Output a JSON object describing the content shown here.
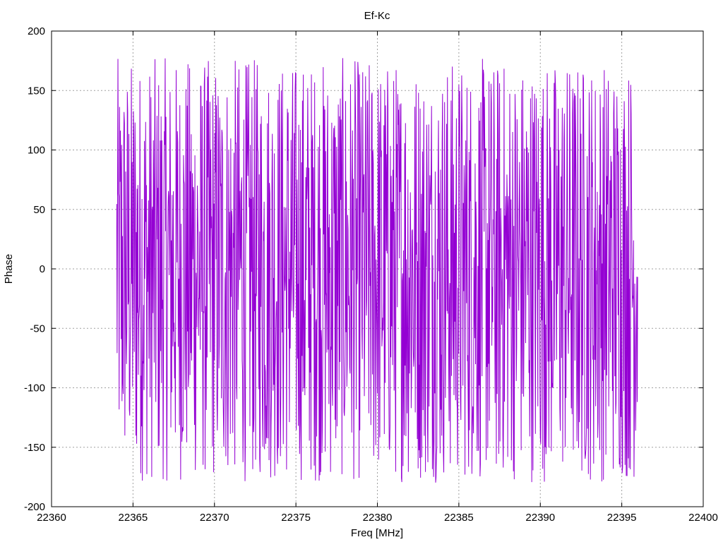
{
  "chart_data": {
    "type": "line",
    "title": "Ef-Kc",
    "xlabel": "Freq [MHz]",
    "ylabel": "Phase",
    "xlim": [
      22360,
      22400
    ],
    "ylim": [
      -200,
      200
    ],
    "xticks": [
      22360,
      22365,
      22370,
      22375,
      22380,
      22385,
      22390,
      22395,
      22400
    ],
    "yticks": [
      -200,
      -150,
      -100,
      -50,
      0,
      50,
      100,
      150,
      200
    ],
    "xtick_labels": [
      "22360",
      "22365",
      "22370",
      "22375",
      "22380",
      "22385",
      "22390",
      "22395",
      "22400"
    ],
    "ytick_labels": [
      "-200",
      "-150",
      "-100",
      "-50",
      "0",
      "50",
      "100",
      "150",
      "200"
    ],
    "grid": true,
    "grid_style": "dotted",
    "line_color": "#9400d3",
    "series": [
      {
        "x_start": 22364.0,
        "x_end": 22396.0,
        "x_step": 0.025,
        "y_range": [
          -180,
          178
        ],
        "note_values": "phase wraps between about -180 and +178 across the whole frequency span"
      }
    ]
  }
}
